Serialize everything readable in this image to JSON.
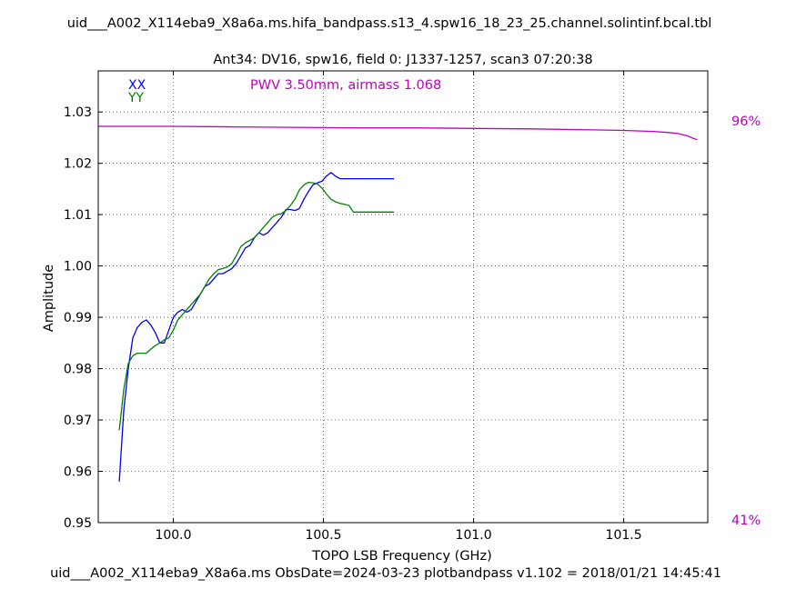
{
  "header": {
    "title": "uid___A002_X114eba9_X8a6a.ms.hifa_bandpass.s13_4.spw16_18_23_25.channel.solintinf.bcal.tbl",
    "subtitle": "Ant34: DV16,  spw16,  field 0: J1337-1257,  scan3  07:20:38"
  },
  "footer": {
    "text": "uid___A002_X114eba9_X8a6a.ms  ObsDate=2024-03-23   plotbandpass v1.102 = 2018/01/21 14:45:41"
  },
  "annotations": {
    "pwv": "PWV 3.50mm, airmass 1.068",
    "right_top": "96%",
    "right_bottom": "41%"
  },
  "colors": {
    "xx": "#0000ff",
    "yy": "#008000",
    "atm": "#bf00bf",
    "axes": "#000000"
  },
  "chart_data": {
    "type": "line",
    "xlabel": "TOPO LSB Frequency (GHz)",
    "ylabel": "Amplitude",
    "xlim": [
      99.75,
      101.78
    ],
    "ylim": [
      0.95,
      1.038
    ],
    "xticks": [
      100.0,
      100.5,
      101.0,
      101.5
    ],
    "xtick_labels": [
      "100.0",
      "100.5",
      "101.0",
      "101.5"
    ],
    "yticks": [
      0.95,
      0.96,
      0.97,
      0.98,
      0.99,
      1.0,
      1.01,
      1.02,
      1.03
    ],
    "ytick_labels": [
      "0.95",
      "0.96",
      "0.97",
      "0.98",
      "0.99",
      "1.00",
      "1.01",
      "1.02",
      "1.03"
    ],
    "grid": true,
    "legend": [
      "XX",
      "YY"
    ],
    "legend_position": "top-left",
    "series": [
      {
        "name": "XX",
        "color": "#0000ff",
        "x": [
          99.82,
          99.835,
          99.85,
          99.865,
          99.88,
          99.895,
          99.91,
          99.925,
          99.94,
          99.955,
          99.97,
          99.985,
          100.0,
          100.015,
          100.03,
          100.045,
          100.06,
          100.075,
          100.09,
          100.105,
          100.12,
          100.135,
          100.15,
          100.165,
          100.18,
          100.195,
          100.21,
          100.225,
          100.24,
          100.255,
          100.27,
          100.285,
          100.3,
          100.315,
          100.33,
          100.345,
          100.36,
          100.375,
          100.39,
          100.405,
          100.42,
          100.435,
          100.45,
          100.465,
          100.48,
          100.495,
          100.51,
          100.525,
          100.54,
          100.555,
          100.57,
          100.585,
          100.6,
          100.615,
          100.63,
          100.645,
          100.66,
          100.675,
          100.69,
          100.705,
          100.72,
          100.735
        ],
        "y": [
          0.958,
          0.972,
          0.98,
          0.986,
          0.988,
          0.989,
          0.9895,
          0.9885,
          0.987,
          0.985,
          0.985,
          0.9875,
          0.99,
          0.991,
          0.9915,
          0.991,
          0.9915,
          0.993,
          0.9945,
          0.996,
          0.9965,
          0.9975,
          0.9985,
          0.9985,
          0.999,
          0.9995,
          1.0005,
          1.002,
          1.0035,
          1.004,
          1.0055,
          1.0065,
          1.006,
          1.0065,
          1.0075,
          1.0085,
          1.0095,
          1.011,
          1.011,
          1.0108,
          1.0112,
          1.013,
          1.0145,
          1.0158,
          1.0162,
          1.0165,
          1.0175,
          1.0182,
          1.0175,
          1.017,
          1.017,
          1.017,
          1.017,
          1.017,
          1.017,
          1.017,
          1.017,
          1.017,
          1.017,
          1.017,
          1.017,
          1.017
        ]
      },
      {
        "name": "YY",
        "color": "#008000",
        "x": [
          99.82,
          99.835,
          99.85,
          99.865,
          99.88,
          99.895,
          99.91,
          99.925,
          99.94,
          99.955,
          99.97,
          99.985,
          100.0,
          100.015,
          100.03,
          100.045,
          100.06,
          100.075,
          100.09,
          100.105,
          100.12,
          100.135,
          100.15,
          100.165,
          100.18,
          100.195,
          100.21,
          100.225,
          100.24,
          100.255,
          100.27,
          100.285,
          100.3,
          100.315,
          100.33,
          100.345,
          100.36,
          100.375,
          100.39,
          100.405,
          100.42,
          100.435,
          100.45,
          100.465,
          100.48,
          100.495,
          100.51,
          100.525,
          100.54,
          100.555,
          100.57,
          100.585,
          100.6,
          100.615,
          100.63,
          100.645,
          100.66,
          100.675,
          100.69,
          100.705,
          100.72,
          100.735
        ],
        "y": [
          0.968,
          0.976,
          0.981,
          0.9825,
          0.983,
          0.983,
          0.983,
          0.9838,
          0.9845,
          0.985,
          0.9856,
          0.986,
          0.9875,
          0.9895,
          0.9905,
          0.9915,
          0.9925,
          0.9935,
          0.9945,
          0.996,
          0.9975,
          0.9985,
          0.9993,
          0.9995,
          0.9998,
          1.0005,
          1.002,
          1.0038,
          1.0045,
          1.005,
          1.0055,
          1.0065,
          1.0075,
          1.0085,
          1.0095,
          1.01,
          1.0102,
          1.0108,
          1.0118,
          1.013,
          1.0148,
          1.0158,
          1.0163,
          1.0162,
          1.016,
          1.0152,
          1.014,
          1.013,
          1.0125,
          1.0122,
          1.012,
          1.0118,
          1.0105,
          1.0105,
          1.0105,
          1.0105,
          1.0105,
          1.0105,
          1.0105,
          1.0105,
          1.0105,
          1.0105
        ]
      },
      {
        "name": "",
        "color": "#bf00bf",
        "x": [
          99.75,
          99.8,
          100.0,
          100.2,
          100.4,
          100.6,
          100.8,
          101.0,
          101.2,
          101.4,
          101.5,
          101.6,
          101.65,
          101.68,
          101.71,
          101.73,
          101.745
        ],
        "y": [
          1.0272,
          1.0272,
          1.0272,
          1.0271,
          1.027,
          1.0269,
          1.0269,
          1.0268,
          1.0267,
          1.0265,
          1.0264,
          1.0262,
          1.026,
          1.0258,
          1.0254,
          1.0249,
          1.0246
        ]
      }
    ]
  }
}
